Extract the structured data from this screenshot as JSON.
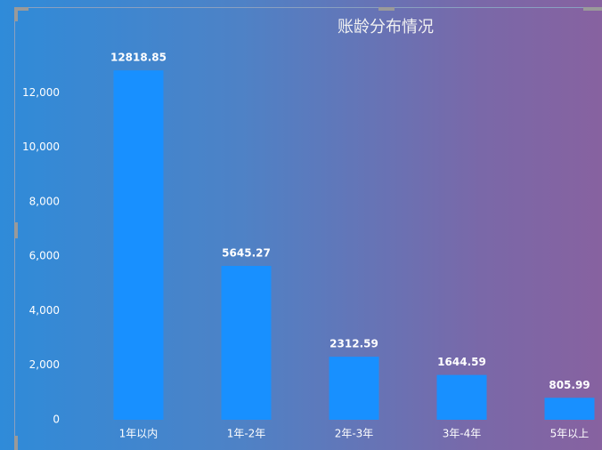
{
  "chart_data": {
    "type": "bar",
    "title": "账龄分布情况",
    "categories": [
      "1年以内",
      "1年-2年",
      "2年-3年",
      "3年-4年",
      "5年以上"
    ],
    "values": [
      12818.85,
      5645.27,
      2312.59,
      1644.59,
      805.99
    ],
    "color": "#1890ff",
    "ylim": [
      0,
      14000
    ],
    "yticks": [
      0,
      {
        "value": 2000,
        "label": "2,000"
      },
      {
        "value": 4000,
        "label": "4,000"
      },
      {
        "value": 6000,
        "label": "6,000"
      },
      {
        "value": 8000,
        "label": "8,000"
      },
      {
        "value": 10000,
        "label": "10,000"
      },
      {
        "value": 12000,
        "label": "12,000"
      }
    ],
    "grid": false
  }
}
